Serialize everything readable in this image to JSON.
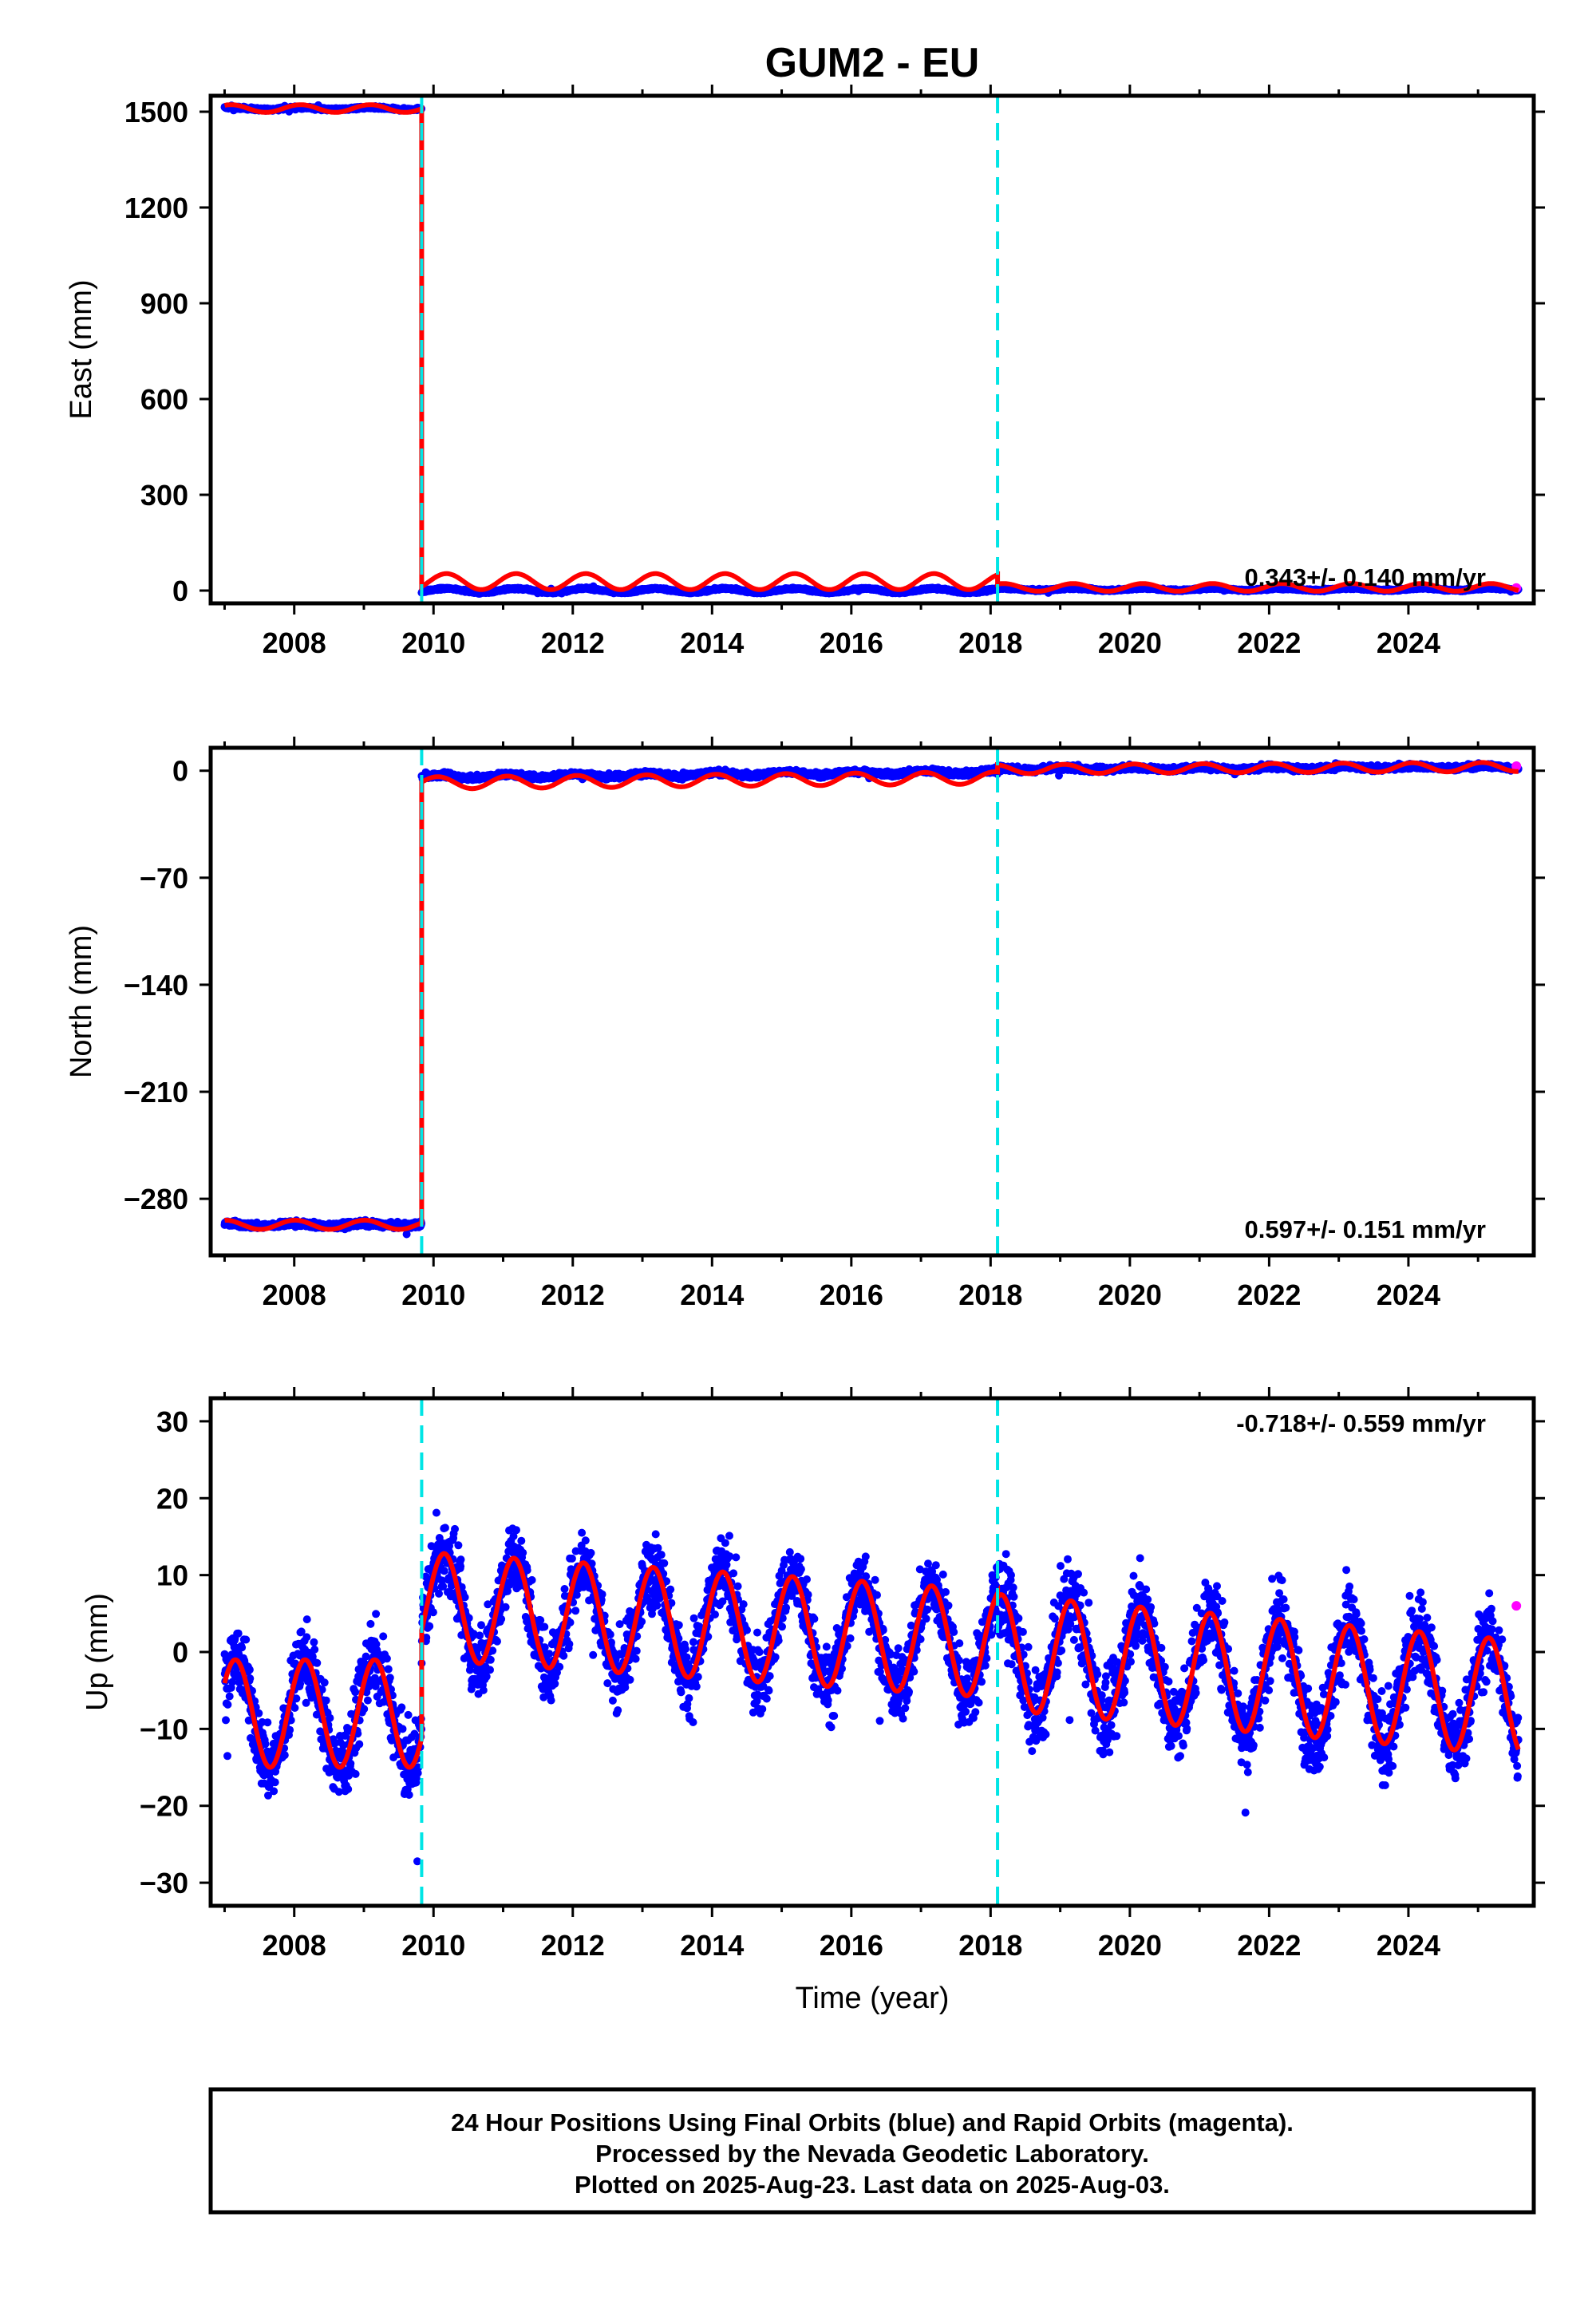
{
  "title": "GUM2 - EU",
  "colors": {
    "final": "#0000ff",
    "rapid": "#ff00ff",
    "model": "#ff0000",
    "event": "#00e5e5",
    "axis": "#000000"
  },
  "footer": {
    "line1": "24 Hour Positions Using Final Orbits (blue) and Rapid Orbits (magenta).",
    "line2": "Processed by the Nevada Geodetic Laboratory.",
    "line3": "Plotted on 2025-Aug-23. Last data on 2025-Aug-03."
  },
  "chart_data": [
    {
      "type": "scatter",
      "component": "east",
      "ylabel": "East (mm)",
      "xlabel": "",
      "xlim": [
        2006.8,
        2025.8
      ],
      "ylim": [
        -40,
        1550
      ],
      "xticks": [
        2008,
        2010,
        2012,
        2014,
        2016,
        2018,
        2020,
        2022,
        2024
      ],
      "yticks": [
        0,
        300,
        600,
        900,
        1200,
        1500
      ],
      "rate_text": "0.343+/- 0.140 mm/yr",
      "rate_position": "bottom-right",
      "event_lines": [
        2009.83,
        2018.1
      ],
      "segments": [
        {
          "start": 2007.0,
          "end": 2009.83,
          "level": 1510,
          "scatter": 4,
          "model_amp": 12,
          "model_phase": 1.0
        },
        {
          "start": 2009.83,
          "end": 2018.1,
          "level": 0,
          "scatter": 3,
          "model_amp": 25,
          "model_phase": 0.4,
          "model_offset": 28
        },
        {
          "start": 2018.1,
          "end": 2025.58,
          "level": 4,
          "scatter": 3,
          "model_amp": 12,
          "model_phase": 0.4,
          "model_offset": 6
        }
      ],
      "rapid_points": [
        [
          2025.55,
          8
        ]
      ]
    },
    {
      "type": "scatter",
      "component": "north",
      "ylabel": "North (mm)",
      "xlabel": "",
      "xlim": [
        2006.8,
        2025.8
      ],
      "ylim": [
        -317,
        15
      ],
      "xticks": [
        2008,
        2010,
        2012,
        2014,
        2016,
        2018,
        2020,
        2022,
        2024
      ],
      "yticks": [
        0,
        -70,
        -140,
        -210,
        -280
      ],
      "rate_text": "0.597+/- 0.151 mm/yr",
      "rate_position": "bottom-right",
      "event_lines": [
        2009.83,
        2018.1
      ],
      "segments": [
        {
          "start": 2007.0,
          "end": 2009.83,
          "level": -297,
          "scatter": 1.8,
          "model_amp": 3,
          "model_phase": 1.5
        },
        {
          "start": 2009.83,
          "end": 2018.1,
          "level": -4,
          "slope": 0.4,
          "scatter": 1.6,
          "model_amp": 4,
          "model_phase": 1.2,
          "model_offset": -4
        },
        {
          "start": 2018.1,
          "end": 2025.58,
          "level": 1,
          "slope": 0.2,
          "scatter": 1.6,
          "model_amp": 3,
          "model_phase": 1.2
        }
      ],
      "rapid_points": [
        [
          2025.55,
          3
        ]
      ]
    },
    {
      "type": "scatter",
      "component": "up",
      "ylabel": "Up (mm)",
      "xlabel": "Time (year)",
      "xlim": [
        2006.8,
        2025.8
      ],
      "ylim": [
        -33,
        33
      ],
      "xticks": [
        2008,
        2010,
        2012,
        2014,
        2016,
        2018,
        2020,
        2022,
        2024
      ],
      "yticks": [
        30,
        20,
        10,
        0,
        -10,
        -20,
        -30
      ],
      "rate_text": "-0.718+/- 0.559 mm/yr",
      "rate_position": "top-right",
      "event_lines": [
        2009.83,
        2018.1
      ],
      "segments": [
        {
          "start": 2007.0,
          "end": 2009.83,
          "level": -8,
          "scatter": 4.5,
          "model_amp": 7,
          "model_phase": 0.6
        },
        {
          "start": 2009.83,
          "end": 2018.1,
          "level": 6,
          "slope": -0.6,
          "scatter": 4.5,
          "model_amp": 7,
          "model_phase": 0.6
        },
        {
          "start": 2018.1,
          "end": 2025.58,
          "level": 0,
          "slope": -0.8,
          "scatter": 5,
          "model_amp": 7.5,
          "model_phase": 0.6
        }
      ],
      "rapid_points": [
        [
          2025.55,
          6
        ]
      ]
    }
  ]
}
